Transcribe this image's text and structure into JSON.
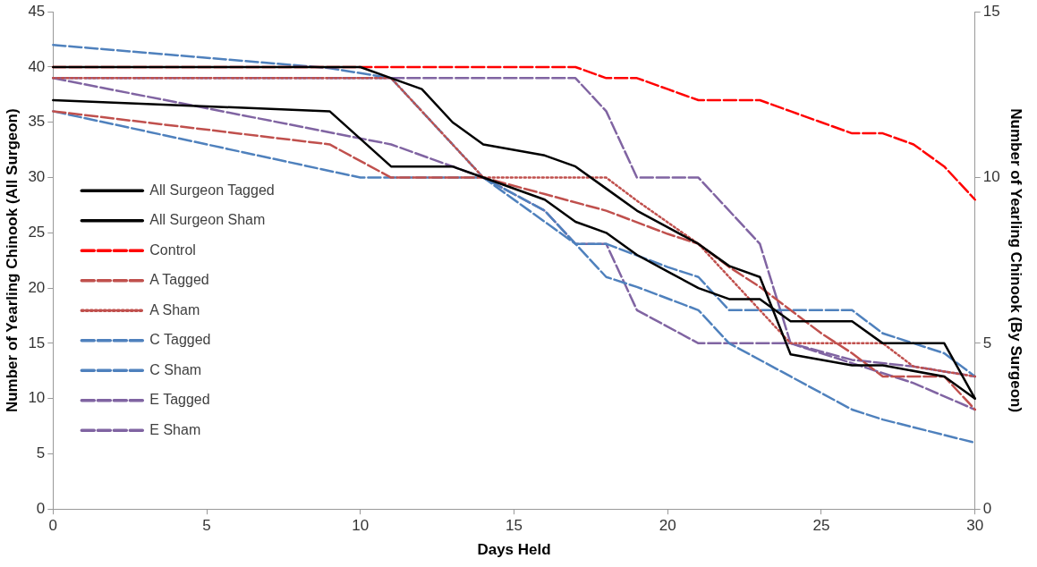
{
  "chart_data": {
    "type": "line",
    "xlabel": "Days Held",
    "ylabel": "Number of Yearling Chinook (All Surgeon)",
    "y2label": "Number of Yearling Chinook (By Surgeon)",
    "xlim": [
      0,
      30
    ],
    "xticks": [
      0,
      5,
      10,
      15,
      20,
      25,
      30
    ],
    "ylim": [
      0,
      45
    ],
    "yticks": [
      0,
      5,
      10,
      15,
      20,
      25,
      30,
      35,
      40,
      45
    ],
    "y2lim": [
      0,
      15
    ],
    "y2ticks": [
      0,
      5,
      10,
      15
    ],
    "grid": false,
    "legend": "left",
    "marker": "none",
    "series": [
      {
        "name": "All Surgeon Tagged",
        "color": "#000000",
        "line_style": "solid",
        "x": [
          0,
          9,
          11,
          13,
          14,
          16,
          17,
          18,
          19,
          20,
          21,
          22,
          23,
          24,
          26,
          27,
          29,
          30
        ],
        "values": [
          37,
          36,
          31,
          31,
          30,
          28,
          26,
          25,
          23,
          21.5,
          20,
          19,
          19,
          17,
          17,
          15,
          15,
          10
        ]
      },
      {
        "name": "All Surgeon Sham",
        "color": "#000000",
        "line_style": "solid",
        "x": [
          0,
          10,
          11,
          12,
          13,
          14,
          16,
          17,
          18,
          19,
          20,
          21,
          22,
          23,
          24,
          26,
          27,
          29,
          30
        ],
        "values": [
          40,
          40,
          39,
          38,
          35,
          33,
          32,
          31,
          29,
          27,
          25.5,
          24,
          22,
          21,
          14,
          13,
          13,
          12,
          10
        ]
      },
      {
        "name": "Control",
        "color": "#ff0000",
        "line_style": "dashed",
        "x": [
          0,
          17,
          18,
          19,
          20,
          21,
          23,
          24,
          25,
          26,
          27,
          28,
          29,
          30
        ],
        "values": [
          40,
          40,
          39,
          39,
          38,
          37,
          37,
          36,
          35,
          34,
          34,
          33,
          31,
          28
        ]
      },
      {
        "name": "A Tagged",
        "color": "#c0504d",
        "line_style": "dashed",
        "axis": "y2",
        "x": [
          0,
          9,
          11,
          14,
          16,
          18,
          20,
          21,
          22,
          23,
          24,
          25,
          26,
          27,
          29,
          30
        ],
        "values": [
          12,
          11,
          10,
          10,
          9.5,
          9,
          8.3,
          8,
          7.3,
          6.7,
          6,
          5.3,
          4.7,
          4,
          4,
          3
        ]
      },
      {
        "name": "A Sham",
        "color": "#c0504d",
        "line_style": "dotted",
        "axis": "y2",
        "x": [
          0,
          11,
          14,
          18,
          19,
          21,
          23,
          24,
          27,
          28,
          30
        ],
        "values": [
          13,
          13,
          10,
          10,
          9.3,
          8,
          6,
          5,
          5,
          4.3,
          4
        ]
      },
      {
        "name": "C Tagged",
        "color": "#4f81bd",
        "line_style": "dashed",
        "axis": "y2",
        "x": [
          0,
          10,
          14,
          17,
          18,
          20,
          21,
          22,
          25,
          26,
          27,
          29,
          30
        ],
        "values": [
          12,
          10,
          10,
          8,
          8,
          7.3,
          7,
          6,
          6,
          6,
          5.3,
          4.7,
          4
        ]
      },
      {
        "name": "C Sham",
        "color": "#4f81bd",
        "line_style": "dashed",
        "axis": "y2",
        "x": [
          0,
          9,
          11,
          13,
          14,
          16,
          17,
          18,
          19,
          21,
          22,
          24,
          26,
          27,
          30
        ],
        "values": [
          14,
          13.3,
          13,
          11,
          10,
          9,
          8,
          7,
          6.7,
          6,
          5,
          4,
          3,
          2.7,
          2
        ]
      },
      {
        "name": "E Tagged",
        "color": "#8064a2",
        "line_style": "dashed",
        "axis": "y2",
        "x": [
          0,
          11,
          14,
          16,
          17,
          18,
          19,
          21,
          24,
          25,
          28,
          30
        ],
        "values": [
          13,
          11,
          10,
          9,
          8,
          8,
          6,
          5,
          5,
          4.7,
          3.8,
          3
        ]
      },
      {
        "name": "E Sham",
        "color": "#8064a2",
        "line_style": "dashed",
        "axis": "y2",
        "x": [
          0,
          17,
          18,
          19,
          21,
          23,
          24,
          26,
          28,
          30
        ],
        "values": [
          13,
          13,
          12,
          10,
          10,
          8,
          5,
          4.5,
          4.3,
          4
        ]
      }
    ]
  }
}
